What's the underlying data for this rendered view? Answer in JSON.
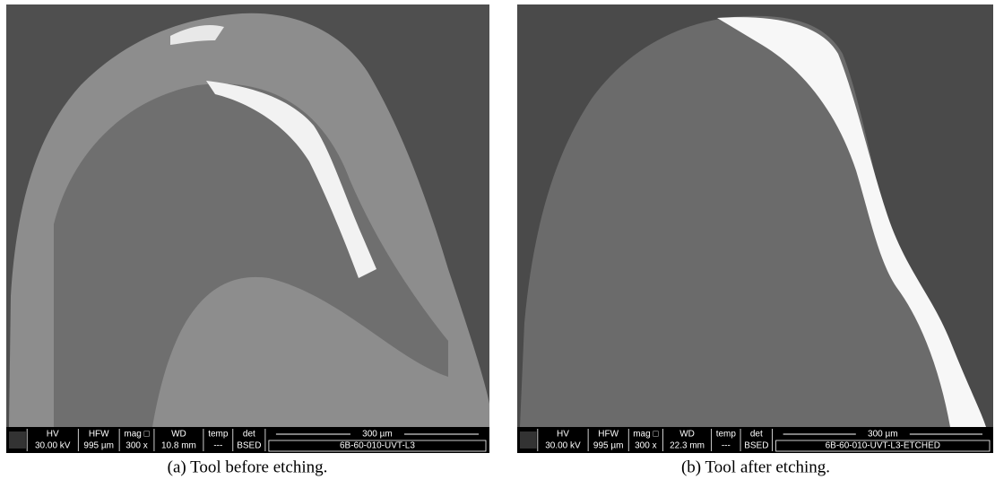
{
  "figures": [
    {
      "caption": "(a) Tool before etching.",
      "info_bar": {
        "headers": [
          "HV",
          "HFW",
          "mag □",
          "WD",
          "temp",
          "det"
        ],
        "values": [
          "30.00 kV",
          "995 µm",
          "300 x",
          "10.8 mm",
          "---",
          "BSED"
        ],
        "scale": "300 µm",
        "sample_id": "6B-60-010-UVT-L3"
      }
    },
    {
      "caption": "(b) Tool after etching.",
      "info_bar": {
        "headers": [
          "HV",
          "HFW",
          "mag □",
          "WD",
          "temp",
          "det"
        ],
        "values": [
          "30.00 kV",
          "995 µm",
          "300 x",
          "22.3 mm",
          "---",
          "BSED"
        ],
        "scale": "300 µm",
        "sample_id": "6B-60-010-UVT-L3-ETCHED"
      }
    }
  ]
}
